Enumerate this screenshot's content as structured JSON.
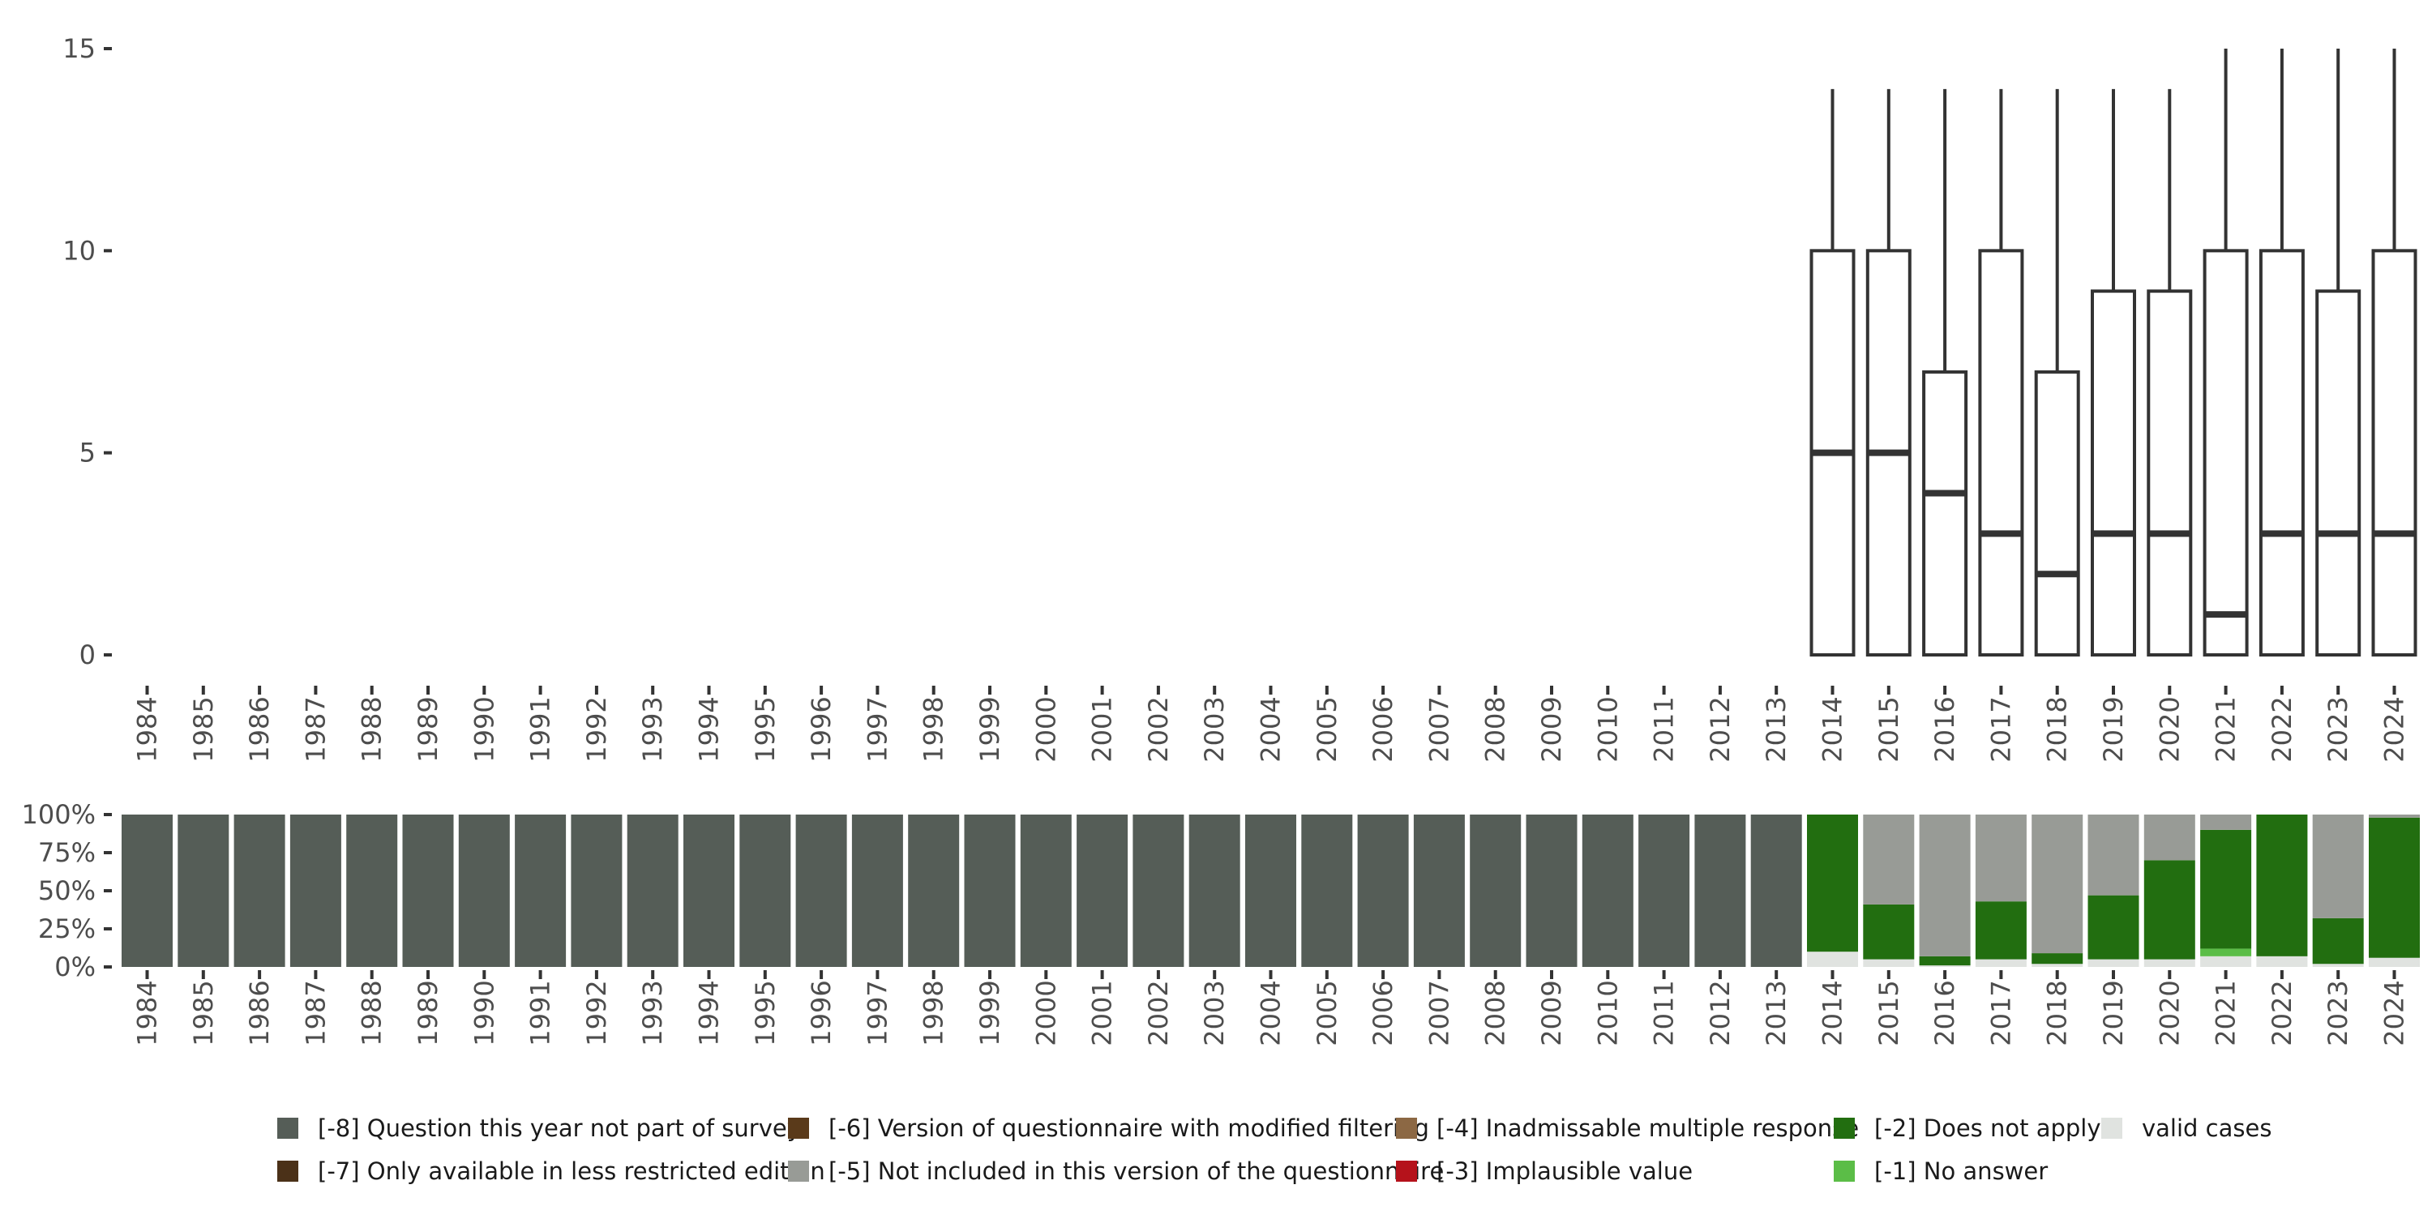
{
  "chart_data": [
    {
      "type": "boxplot",
      "x": [
        "1984",
        "1985",
        "1986",
        "1987",
        "1988",
        "1989",
        "1990",
        "1991",
        "1992",
        "1993",
        "1994",
        "1995",
        "1996",
        "1997",
        "1998",
        "1999",
        "2000",
        "2001",
        "2002",
        "2003",
        "2004",
        "2005",
        "2006",
        "2007",
        "2008",
        "2009",
        "2010",
        "2011",
        "2012",
        "2013",
        "2014",
        "2015",
        "2016",
        "2017",
        "2018",
        "2019",
        "2020",
        "2021",
        "2022",
        "2023",
        "2024"
      ],
      "ylim": [
        0,
        15
      ],
      "yticks": [
        0,
        5,
        10,
        15
      ],
      "boxes": [
        {
          "year": "2014",
          "q1": 0,
          "median": 5,
          "q3": 10,
          "whisker_high": 14
        },
        {
          "year": "2015",
          "q1": 0,
          "median": 5,
          "q3": 10,
          "whisker_high": 14
        },
        {
          "year": "2016",
          "q1": 0,
          "median": 4,
          "q3": 7,
          "whisker_high": 14
        },
        {
          "year": "2017",
          "q1": 0,
          "median": 3,
          "q3": 10,
          "whisker_high": 14
        },
        {
          "year": "2018",
          "q1": 0,
          "median": 2,
          "q3": 7,
          "whisker_high": 14
        },
        {
          "year": "2019",
          "q1": 0,
          "median": 3,
          "q3": 9,
          "whisker_high": 14
        },
        {
          "year": "2020",
          "q1": 0,
          "median": 3,
          "q3": 9,
          "whisker_high": 14
        },
        {
          "year": "2021",
          "q1": 0,
          "median": 1,
          "q3": 10,
          "whisker_high": 15
        },
        {
          "year": "2022",
          "q1": 0,
          "median": 3,
          "q3": 10,
          "whisker_high": 15
        },
        {
          "year": "2023",
          "q1": 0,
          "median": 3,
          "q3": 9,
          "whisker_high": 15
        },
        {
          "year": "2024",
          "q1": 0,
          "median": 3,
          "q3": 10,
          "whisker_high": 15
        }
      ],
      "grid": false
    },
    {
      "type": "stacked-bar",
      "x": [
        "1984",
        "1985",
        "1986",
        "1987",
        "1988",
        "1989",
        "1990",
        "1991",
        "1992",
        "1993",
        "1994",
        "1995",
        "1996",
        "1997",
        "1998",
        "1999",
        "2000",
        "2001",
        "2002",
        "2003",
        "2004",
        "2005",
        "2006",
        "2007",
        "2008",
        "2009",
        "2010",
        "2011",
        "2012",
        "2013",
        "2014",
        "2015",
        "2016",
        "2017",
        "2018",
        "2019",
        "2020",
        "2021",
        "2022",
        "2023",
        "2024"
      ],
      "ytick_labels": [
        "0%",
        "25%",
        "50%",
        "75%",
        "100%"
      ],
      "ytick_values": [
        0,
        0.25,
        0.5,
        0.75,
        1
      ],
      "stack_order": [
        "valid",
        "m1",
        "m2",
        "m3",
        "m4",
        "m5",
        "m6",
        "m7",
        "m8"
      ],
      "series_colors": {
        "m8": "#555d57",
        "m7": "#4b3118",
        "m6": "#5a3a1a",
        "m5": "#989b96",
        "m4": "#8c6844",
        "m3": "#b5121b",
        "m2": "#226e10",
        "m1": "#5bbd47",
        "valid": "#e0e3e0"
      },
      "shares": {
        "1984": {
          "m8": 1
        },
        "1985": {
          "m8": 1
        },
        "1986": {
          "m8": 1
        },
        "1987": {
          "m8": 1
        },
        "1988": {
          "m8": 1
        },
        "1989": {
          "m8": 1
        },
        "1990": {
          "m8": 1
        },
        "1991": {
          "m8": 1
        },
        "1992": {
          "m8": 1
        },
        "1993": {
          "m8": 1
        },
        "1994": {
          "m8": 1
        },
        "1995": {
          "m8": 1
        },
        "1996": {
          "m8": 1
        },
        "1997": {
          "m8": 1
        },
        "1998": {
          "m8": 1
        },
        "1999": {
          "m8": 1
        },
        "2000": {
          "m8": 1
        },
        "2001": {
          "m8": 1
        },
        "2002": {
          "m8": 1
        },
        "2003": {
          "m8": 1
        },
        "2004": {
          "m8": 1
        },
        "2005": {
          "m8": 1
        },
        "2006": {
          "m8": 1
        },
        "2007": {
          "m8": 1
        },
        "2008": {
          "m8": 1
        },
        "2009": {
          "m8": 1
        },
        "2010": {
          "m8": 1
        },
        "2011": {
          "m8": 1
        },
        "2012": {
          "m8": 1
        },
        "2013": {
          "m8": 1
        },
        "2014": {
          "valid": 0.1,
          "m2": 0.9
        },
        "2015": {
          "valid": 0.05,
          "m2": 0.36,
          "m5": 0.59
        },
        "2016": {
          "valid": 0.01,
          "m2": 0.06,
          "m5": 0.93
        },
        "2017": {
          "valid": 0.05,
          "m2": 0.38,
          "m5": 0.57
        },
        "2018": {
          "valid": 0.02,
          "m2": 0.07,
          "m5": 0.91
        },
        "2019": {
          "valid": 0.05,
          "m2": 0.42,
          "m5": 0.53
        },
        "2020": {
          "valid": 0.05,
          "m2": 0.65,
          "m5": 0.3
        },
        "2021": {
          "valid": 0.07,
          "m1": 0.05,
          "m2": 0.78,
          "m5": 0.1
        },
        "2022": {
          "valid": 0.07,
          "m2": 0.93
        },
        "2023": {
          "valid": 0.02,
          "m2": 0.3,
          "m5": 0.68
        },
        "2024": {
          "valid": 0.06,
          "m2": 0.92,
          "m5": 0.02
        }
      }
    }
  ],
  "legend": [
    {
      "key": "m8",
      "label": "[-8] Question this year not part of survey",
      "color": "#555d57"
    },
    {
      "key": "m7",
      "label": "[-7] Only available in less restricted edition",
      "color": "#4b3118"
    },
    {
      "key": "m6",
      "label": "[-6] Version of questionnaire with modified filtering",
      "color": "#5a3a1a"
    },
    {
      "key": "m5",
      "label": "[-5] Not included in this version of the questionnaire",
      "color": "#989b96"
    },
    {
      "key": "m4",
      "label": "[-4] Inadmissable multiple response",
      "color": "#8c6844"
    },
    {
      "key": "m3",
      "label": "[-3] Implausible value",
      "color": "#b5121b"
    },
    {
      "key": "m2",
      "label": "[-2] Does not apply",
      "color": "#226e10"
    },
    {
      "key": "m1",
      "label": "[-1] No answer",
      "color": "#5bbd47"
    },
    {
      "key": "valid",
      "label": "valid cases",
      "color": "#e0e3e0"
    }
  ]
}
